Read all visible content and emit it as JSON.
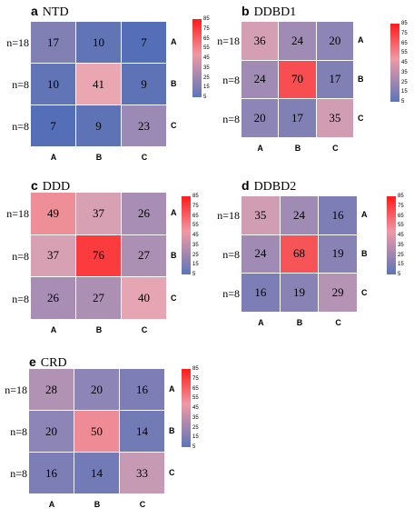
{
  "chart_data": [
    {
      "type": "heatmap",
      "panel": "a",
      "title": "NTD",
      "rows": [
        "n=18",
        "n=8",
        "n=8"
      ],
      "row_categories": [
        "A",
        "B",
        "C"
      ],
      "columns": [
        "A",
        "B",
        "C"
      ],
      "values": [
        [
          17,
          10,
          7
        ],
        [
          10,
          41,
          9
        ],
        [
          7,
          9,
          23
        ]
      ],
      "colorbar": {
        "min": 5,
        "max": 85,
        "ticks": [
          85,
          75,
          65,
          55,
          45,
          35,
          25,
          15,
          5
        ]
      }
    },
    {
      "type": "heatmap",
      "panel": "b",
      "title": "DDBD1",
      "rows": [
        "n=18",
        "n=8",
        "n=8"
      ],
      "row_categories": [
        "A",
        "B",
        "C"
      ],
      "columns": [
        "A",
        "B",
        "C"
      ],
      "values": [
        [
          36,
          24,
          20
        ],
        [
          24,
          70,
          17
        ],
        [
          20,
          17,
          35
        ]
      ],
      "colorbar": {
        "min": 5,
        "max": 85,
        "ticks": [
          85,
          75,
          65,
          55,
          45,
          35,
          25,
          15,
          5
        ]
      }
    },
    {
      "type": "heatmap",
      "panel": "c",
      "title": "DDD",
      "rows": [
        "n=18",
        "n=8",
        "n=8"
      ],
      "row_categories": [
        "A",
        "B",
        "C"
      ],
      "columns": [
        "A",
        "B",
        "C"
      ],
      "values": [
        [
          49,
          37,
          26
        ],
        [
          37,
          76,
          27
        ],
        [
          26,
          27,
          40
        ]
      ],
      "colorbar": {
        "min": 5,
        "max": 85,
        "ticks": [
          85,
          75,
          65,
          55,
          45,
          35,
          25,
          15,
          5
        ]
      }
    },
    {
      "type": "heatmap",
      "panel": "d",
      "title": "DDBD2",
      "rows": [
        "n=18",
        "n=8",
        "n=8"
      ],
      "row_categories": [
        "A",
        "B",
        "C"
      ],
      "columns": [
        "A",
        "B",
        "C"
      ],
      "values": [
        [
          35,
          24,
          16
        ],
        [
          24,
          68,
          19
        ],
        [
          16,
          19,
          29
        ]
      ],
      "colorbar": {
        "min": 5,
        "max": 85,
        "ticks": [
          85,
          75,
          65,
          55,
          45,
          35,
          25,
          15,
          5
        ]
      }
    },
    {
      "type": "heatmap",
      "panel": "e",
      "title": "CRD",
      "rows": [
        "n=18",
        "n=8",
        "n=8"
      ],
      "row_categories": [
        "A",
        "B",
        "C"
      ],
      "columns": [
        "A",
        "B",
        "C"
      ],
      "values": [
        [
          28,
          20,
          16
        ],
        [
          20,
          50,
          14
        ],
        [
          16,
          14,
          33
        ]
      ],
      "colorbar": {
        "min": 5,
        "max": 85,
        "ticks": [
          85,
          75,
          65,
          55,
          45,
          35,
          25,
          15,
          5
        ]
      }
    }
  ],
  "colors": {
    "low": "#4b6cb7",
    "mid": "#eaa7b2",
    "high": "#ff1f1f"
  }
}
